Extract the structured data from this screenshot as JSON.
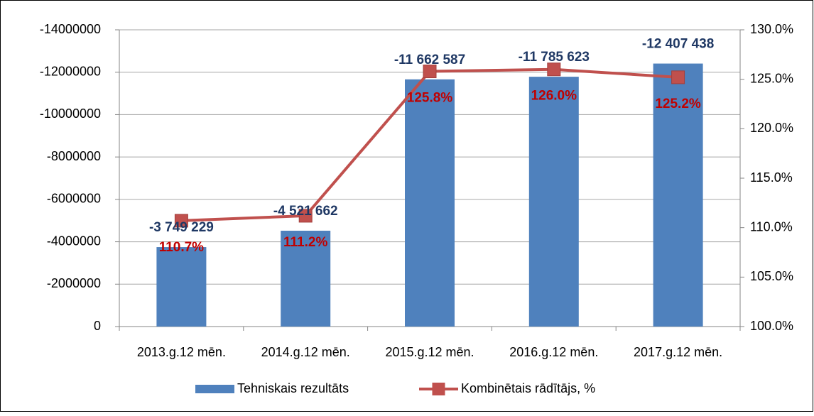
{
  "chart_data": {
    "type": "combo",
    "categories": [
      "2013.g.12 mēn.",
      "2014.g.12 mēn.",
      "2015.g.12 mēn.",
      "2016.g.12 mēn.",
      "2017.g.12 mēn."
    ],
    "series": [
      {
        "name": "Tehniskais rezultāts",
        "type": "bar",
        "color": "#4f81bd",
        "values": [
          -3749229,
          -4521662,
          -11662587,
          -11785623,
          -12407438
        ],
        "value_labels": [
          "-3 749 229",
          "-4 521 662",
          "-11 662 587",
          "-11 785 623",
          "-12 407 438"
        ]
      },
      {
        "name": "Kombinētais rādītājs, %",
        "type": "line",
        "axis": "y2",
        "color": "#c0504d",
        "values": [
          110.7,
          111.2,
          125.8,
          126.0,
          125.2
        ],
        "value_labels": [
          "110.7%",
          "111.2%",
          "125.8%",
          "126.0%",
          "125.2%"
        ]
      }
    ],
    "ylim": [
      0,
      -14000000
    ],
    "yticks": [
      0,
      -2000000,
      -4000000,
      -6000000,
      -8000000,
      -10000000,
      -12000000,
      -14000000
    ],
    "y2lim": [
      100,
      130
    ],
    "y2ticks": [
      {
        "value": 100,
        "label": "100.0%"
      },
      {
        "value": 105,
        "label": "105.0%"
      },
      {
        "value": 110,
        "label": "110.0%"
      },
      {
        "value": 115,
        "label": "115.0%"
      },
      {
        "value": 120,
        "label": "120.0%"
      },
      {
        "value": 125,
        "label": "125.0%"
      },
      {
        "value": 130,
        "label": "130.0%"
      }
    ],
    "grid": true,
    "legend": "bottom"
  }
}
